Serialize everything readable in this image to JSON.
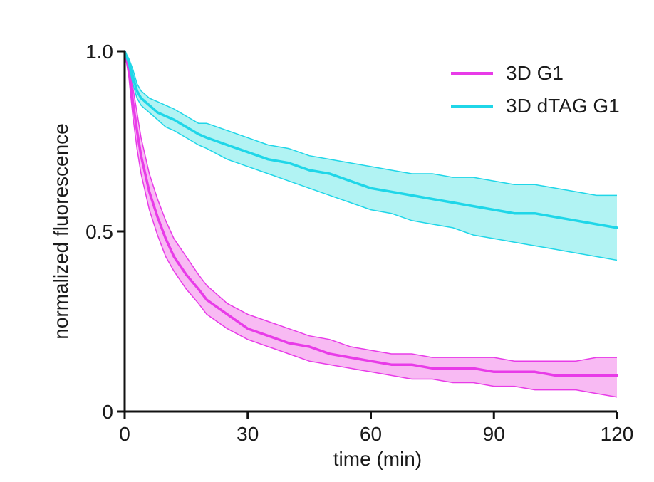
{
  "chart_data": {
    "type": "line",
    "title": "",
    "xlabel": "time (min)",
    "ylabel": "normalized fluorescence",
    "xlim": [
      0,
      120
    ],
    "ylim": [
      0,
      1.0
    ],
    "x_ticks": [
      0,
      30,
      60,
      90,
      120
    ],
    "x_tick_labels": [
      "0",
      "30",
      "60",
      "90",
      "120"
    ],
    "y_ticks": [
      0,
      0.5,
      1.0
    ],
    "y_tick_labels": [
      "0",
      "0.5",
      "1.0"
    ],
    "grid": false,
    "legend_position": "top-right",
    "x": [
      0,
      1,
      2,
      3,
      4,
      5,
      6,
      8,
      10,
      12,
      15,
      18,
      20,
      25,
      30,
      35,
      40,
      45,
      50,
      55,
      60,
      65,
      70,
      75,
      80,
      85,
      90,
      95,
      100,
      105,
      110,
      115,
      120
    ],
    "series": [
      {
        "name": "3D G1",
        "color": "#e83be8",
        "band_fill": "#f7b3f2",
        "mean": [
          1.0,
          0.95,
          0.86,
          0.78,
          0.71,
          0.66,
          0.61,
          0.54,
          0.48,
          0.43,
          0.38,
          0.34,
          0.31,
          0.27,
          0.23,
          0.21,
          0.19,
          0.18,
          0.16,
          0.15,
          0.14,
          0.13,
          0.13,
          0.12,
          0.12,
          0.12,
          0.11,
          0.11,
          0.11,
          0.1,
          0.1,
          0.1,
          0.1
        ],
        "upper": [
          1.0,
          0.97,
          0.9,
          0.83,
          0.76,
          0.71,
          0.66,
          0.59,
          0.53,
          0.48,
          0.43,
          0.38,
          0.35,
          0.3,
          0.27,
          0.25,
          0.23,
          0.21,
          0.2,
          0.18,
          0.17,
          0.16,
          0.16,
          0.15,
          0.15,
          0.15,
          0.15,
          0.14,
          0.14,
          0.14,
          0.14,
          0.15,
          0.15
        ],
        "lower": [
          1.0,
          0.93,
          0.82,
          0.73,
          0.66,
          0.61,
          0.56,
          0.49,
          0.43,
          0.39,
          0.34,
          0.3,
          0.27,
          0.23,
          0.2,
          0.18,
          0.16,
          0.14,
          0.13,
          0.12,
          0.11,
          0.1,
          0.09,
          0.09,
          0.08,
          0.08,
          0.07,
          0.07,
          0.06,
          0.06,
          0.06,
          0.05,
          0.04
        ]
      },
      {
        "name": "3D dTAG G1",
        "color": "#1fd6e8",
        "band_fill": "#a8f2f2",
        "mean": [
          1.0,
          0.97,
          0.93,
          0.89,
          0.87,
          0.86,
          0.85,
          0.83,
          0.82,
          0.81,
          0.79,
          0.77,
          0.76,
          0.74,
          0.72,
          0.7,
          0.69,
          0.67,
          0.66,
          0.64,
          0.62,
          0.61,
          0.6,
          0.59,
          0.58,
          0.57,
          0.56,
          0.55,
          0.55,
          0.54,
          0.53,
          0.52,
          0.51
        ],
        "upper": [
          1.0,
          0.98,
          0.95,
          0.91,
          0.89,
          0.88,
          0.87,
          0.86,
          0.85,
          0.84,
          0.82,
          0.8,
          0.8,
          0.78,
          0.76,
          0.74,
          0.73,
          0.71,
          0.7,
          0.69,
          0.68,
          0.67,
          0.66,
          0.66,
          0.65,
          0.65,
          0.64,
          0.63,
          0.63,
          0.62,
          0.61,
          0.6,
          0.6
        ],
        "lower": [
          1.0,
          0.96,
          0.91,
          0.87,
          0.85,
          0.84,
          0.83,
          0.81,
          0.79,
          0.78,
          0.76,
          0.74,
          0.73,
          0.7,
          0.68,
          0.66,
          0.64,
          0.62,
          0.6,
          0.58,
          0.56,
          0.55,
          0.53,
          0.52,
          0.51,
          0.49,
          0.48,
          0.47,
          0.46,
          0.45,
          0.44,
          0.43,
          0.42
        ]
      }
    ]
  }
}
